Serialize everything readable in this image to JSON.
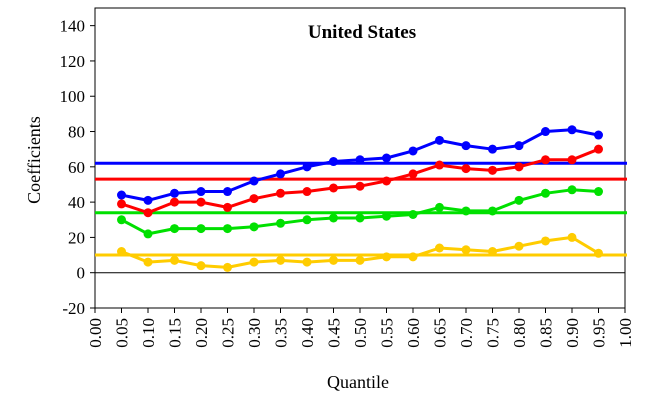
{
  "chart_data": {
    "type": "line",
    "title": "United States",
    "xlabel": "Quantile",
    "ylabel": "Coefficients",
    "xlim": [
      0.0,
      1.0
    ],
    "ylim": [
      -20,
      150
    ],
    "x_ticks": [
      "0.00",
      "0.05",
      "0.10",
      "0.15",
      "0.20",
      "0.25",
      "0.30",
      "0.35",
      "0.40",
      "0.45",
      "0.50",
      "0.55",
      "0.60",
      "0.65",
      "0.70",
      "0.75",
      "0.80",
      "0.85",
      "0.90",
      "0.95",
      "1.00"
    ],
    "y_ticks": [
      "-20",
      "0",
      "20",
      "40",
      "60",
      "80",
      "100",
      "120",
      "140"
    ],
    "x": [
      0.05,
      0.1,
      0.15,
      0.2,
      0.25,
      0.3,
      0.35,
      0.4,
      0.45,
      0.5,
      0.55,
      0.6,
      0.65,
      0.7,
      0.75,
      0.8,
      0.85,
      0.9,
      0.95
    ],
    "grid": false,
    "legend": "none",
    "series": [
      {
        "color": "#0000ff",
        "values": [
          44,
          41,
          45,
          46,
          46,
          52,
          56,
          60,
          63,
          64,
          65,
          69,
          75,
          72,
          70,
          72,
          80,
          81,
          78
        ],
        "reference_line": 62
      },
      {
        "color": "#ff0000",
        "values": [
          39,
          34,
          40,
          40,
          37,
          42,
          45,
          46,
          48,
          49,
          52,
          56,
          61,
          59,
          58,
          60,
          64,
          64,
          70
        ],
        "reference_line": 53
      },
      {
        "color": "#00e000",
        "values": [
          30,
          22,
          25,
          25,
          25,
          26,
          28,
          30,
          31,
          31,
          32,
          33,
          37,
          35,
          35,
          41,
          45,
          47,
          46
        ],
        "reference_line": 34
      },
      {
        "color": "#ffcc00",
        "values": [
          12,
          6,
          7,
          4,
          3,
          6,
          7,
          6,
          7,
          7,
          9,
          9,
          14,
          13,
          12,
          15,
          18,
          20,
          11
        ],
        "reference_line": 10
      }
    ]
  }
}
